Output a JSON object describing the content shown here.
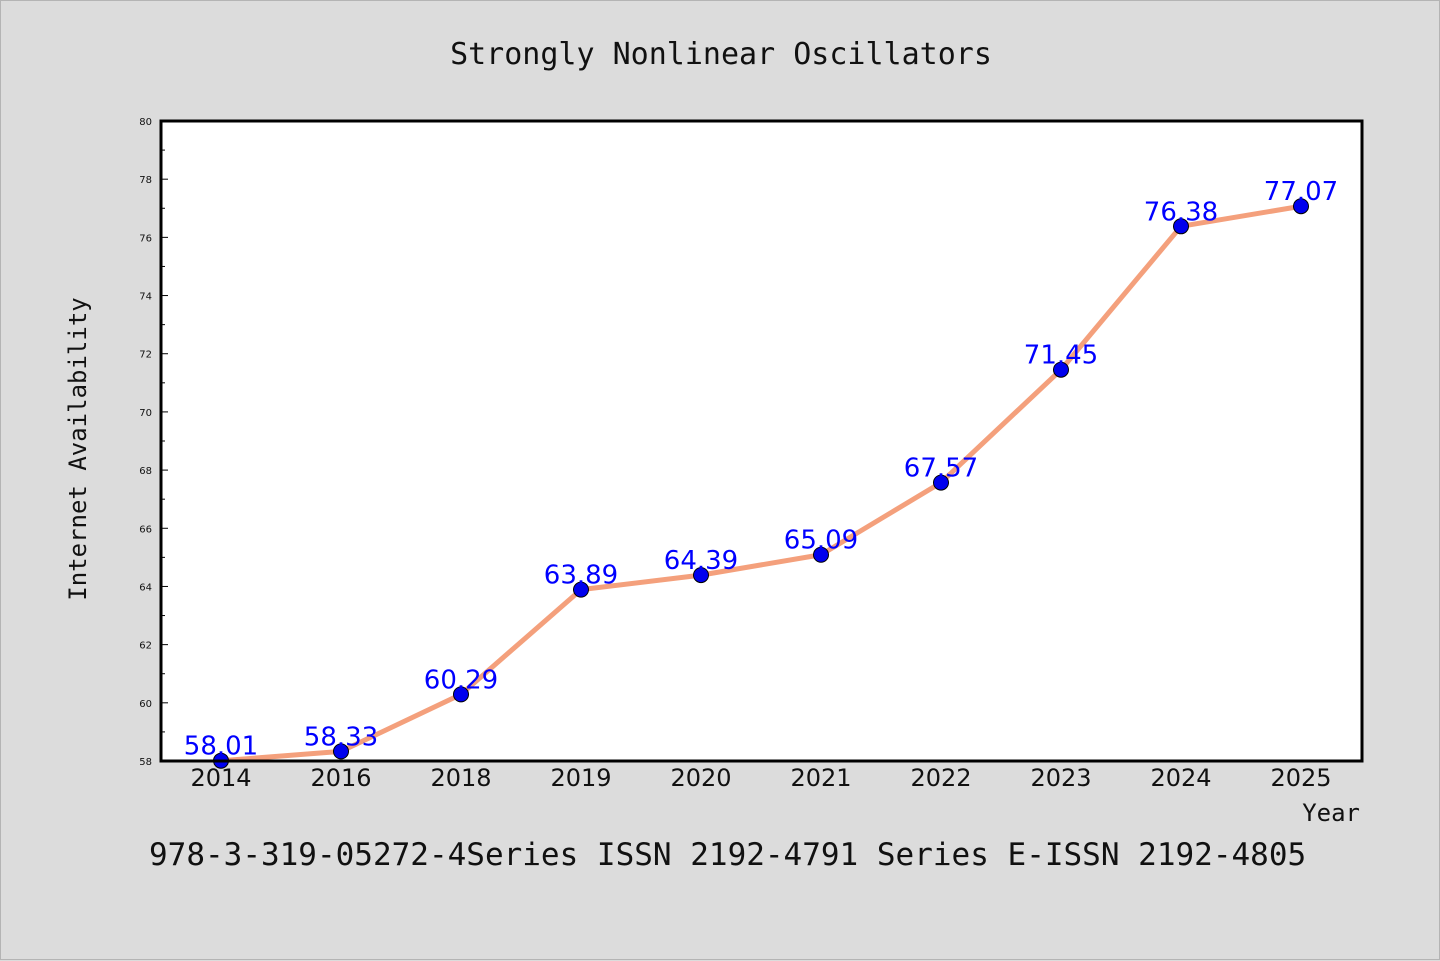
{
  "chart_data": {
    "type": "line",
    "title": "Strongly Nonlinear Oscillators",
    "xlabel": "Year",
    "ylabel": "Internet Availability",
    "categories": [
      "2014",
      "2016",
      "2018",
      "2019",
      "2020",
      "2021",
      "2022",
      "2023",
      "2024",
      "2025"
    ],
    "series": [
      {
        "values": [
          58.01,
          58.33,
          60.29,
          63.89,
          64.39,
          65.09,
          67.57,
          71.45,
          76.38,
          77.07
        ],
        "data_labels": [
          "58.01",
          "58.33",
          "60.29",
          "63.89",
          "64.39",
          "65.09",
          "67.57",
          "71.45",
          "76.38",
          "77.07"
        ]
      }
    ],
    "ylim": [
      58,
      80
    ],
    "yticks": [
      "58",
      "60",
      "62",
      "64",
      "66",
      "68",
      "70",
      "72",
      "74",
      "76",
      "78",
      "80"
    ],
    "grid": false,
    "legend": "none",
    "colors": {
      "line": "#f4a07c",
      "marker": "#0000ee",
      "label": "#0000ff",
      "background": "#dcdcdc",
      "plot": "#ffffff"
    },
    "footer": "978-3-319-05272-4Series ISSN 2192-4791 Series E-ISSN 2192-4805"
  }
}
